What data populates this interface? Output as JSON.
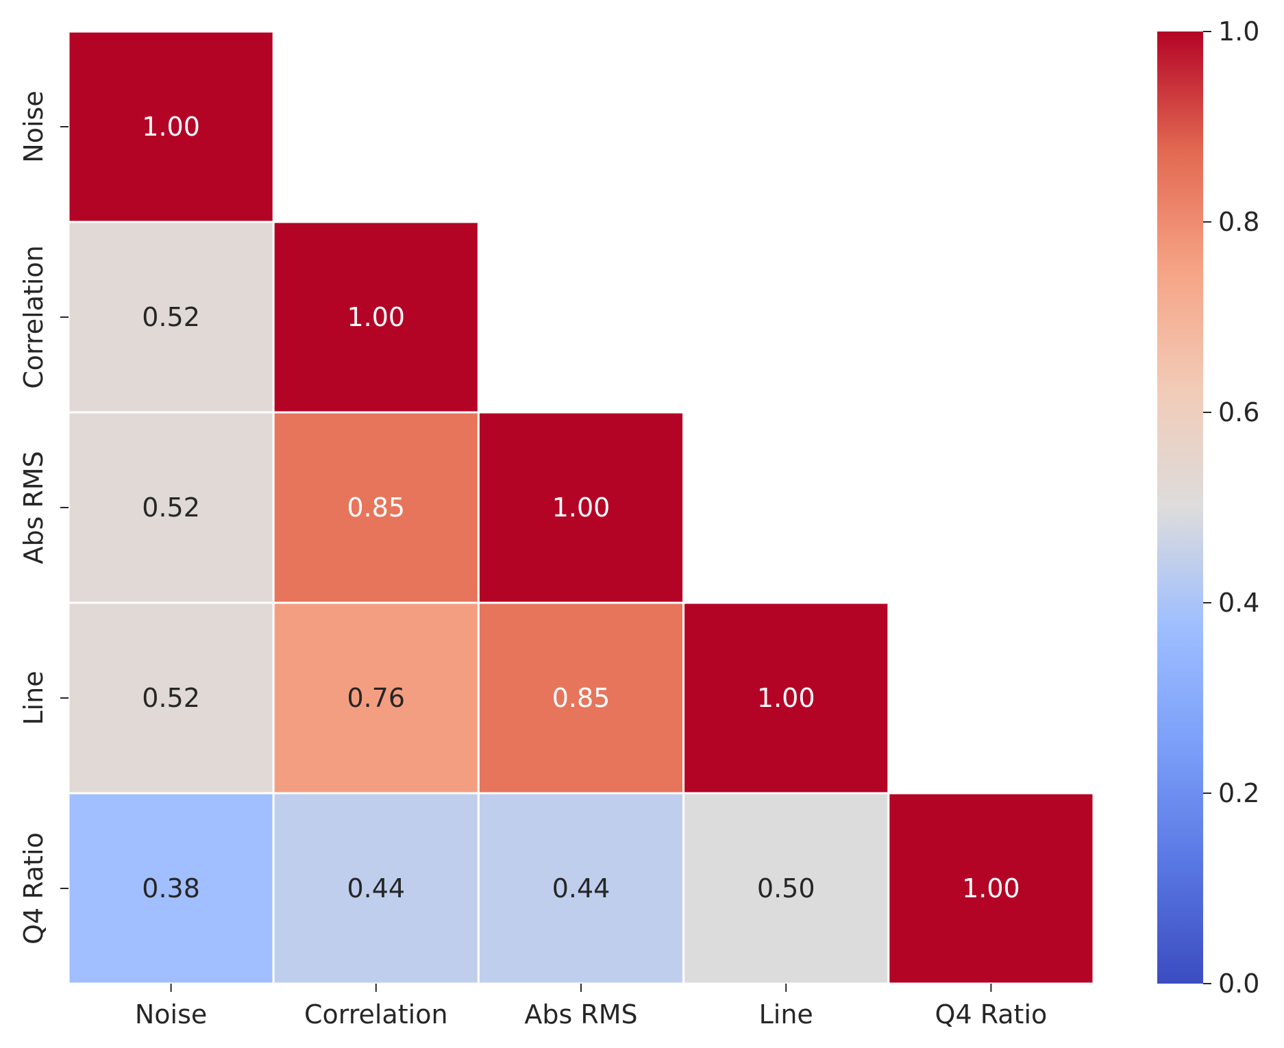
{
  "chart_data": {
    "type": "heatmap",
    "title": "",
    "xlabel": "",
    "ylabel": "",
    "x_categories": [
      "Noise",
      "Correlation",
      "Abs RMS",
      "Line",
      "Q4 Ratio"
    ],
    "y_categories": [
      "Noise",
      "Correlation",
      "Abs RMS",
      "Line",
      "Q4 Ratio"
    ],
    "mask": "upper-triangle",
    "values": [
      [
        1.0,
        null,
        null,
        null,
        null
      ],
      [
        0.52,
        1.0,
        null,
        null,
        null
      ],
      [
        0.52,
        0.85,
        1.0,
        null,
        null
      ],
      [
        0.52,
        0.76,
        0.85,
        1.0,
        null
      ],
      [
        0.38,
        0.44,
        0.44,
        0.5,
        1.0
      ]
    ],
    "annotation_format": "0.00",
    "colormap": "coolwarm",
    "vmin": 0.0,
    "vmax": 1.0,
    "cell_border_color": "#ffffff",
    "colorbar": {
      "position": "right",
      "ticks": [
        0.0,
        0.2,
        0.4,
        0.6,
        0.8,
        1.0
      ],
      "tick_labels": [
        "0.0",
        "0.2",
        "0.4",
        "0.6",
        "0.8",
        "1.0"
      ]
    }
  }
}
